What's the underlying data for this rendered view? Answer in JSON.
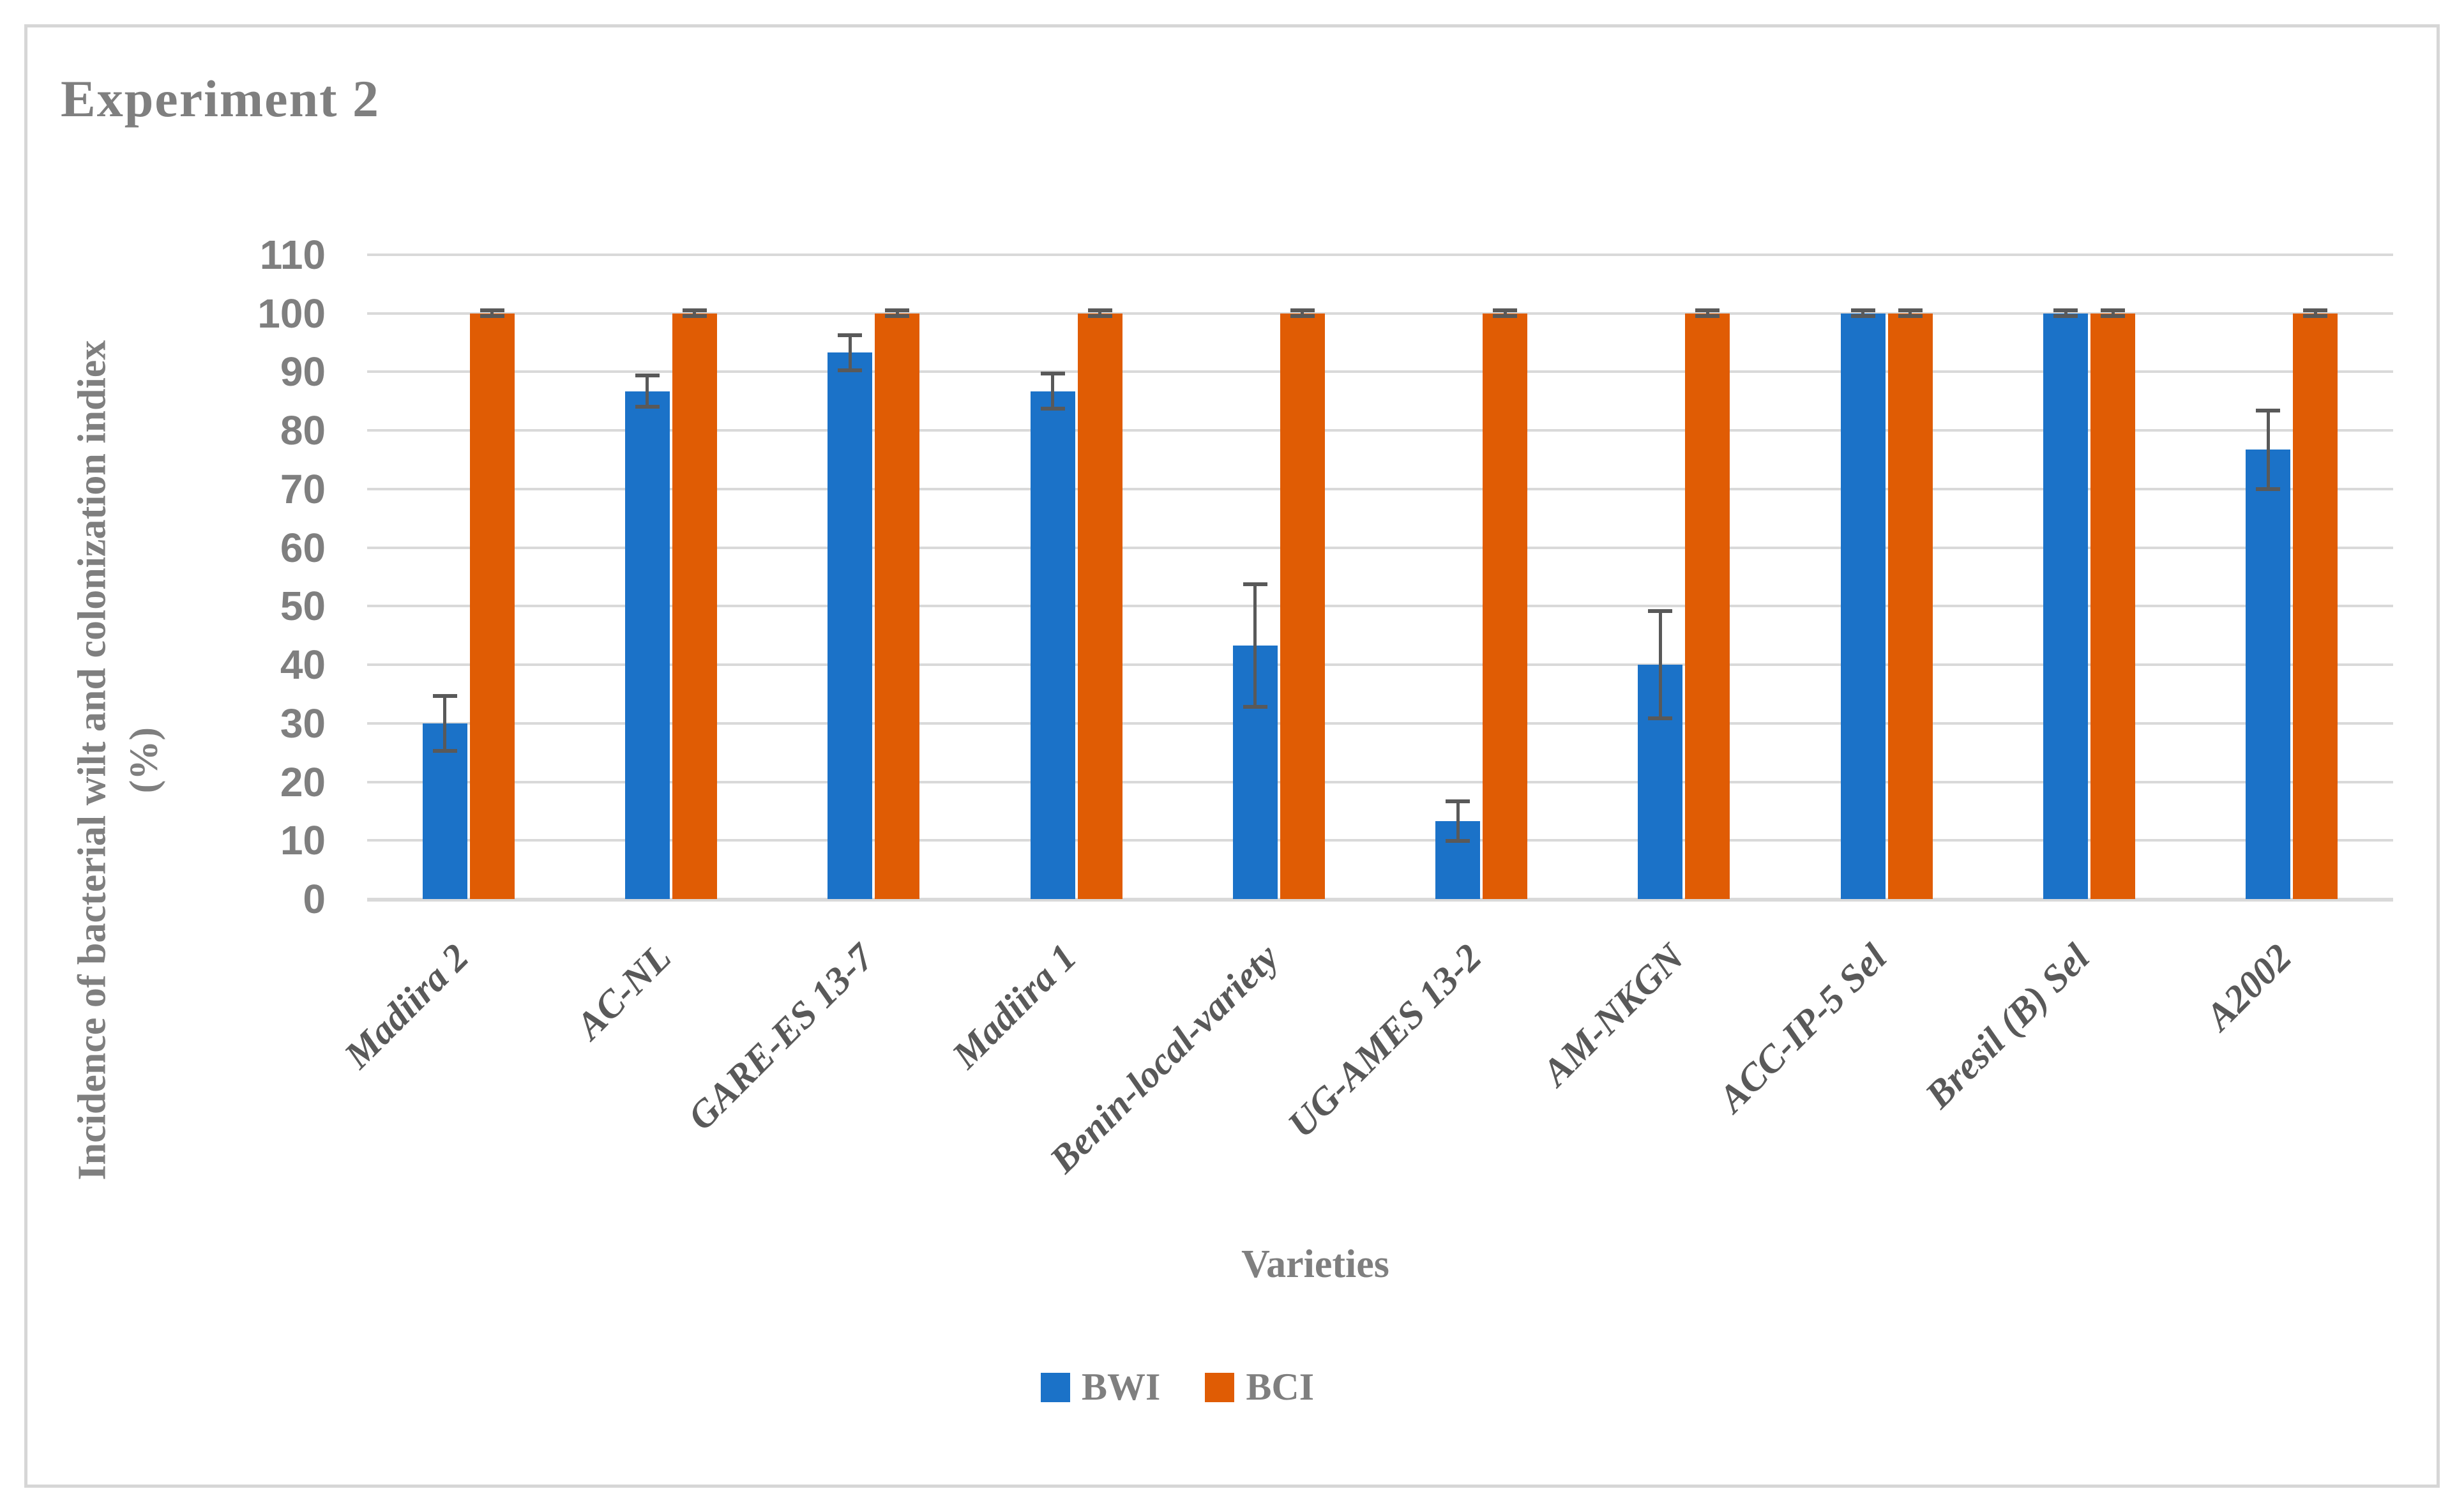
{
  "figure": {
    "title": "Experiment 2",
    "background": "#FFFFFF",
    "border_color": "#D6D6D6"
  },
  "chart_data": {
    "type": "bar",
    "title": "Experiment 2",
    "xlabel": "Varieties",
    "ylabel_line1": "Incidence of bacterial wilt and colonization indiex",
    "ylabel_line2": "(%)",
    "ylim": [
      0,
      110
    ],
    "yticks": [
      0,
      10,
      20,
      30,
      40,
      50,
      60,
      70,
      80,
      90,
      100,
      110
    ],
    "grid": "horizontal",
    "gridline_color": "#D9D9D9",
    "error_bar_color": "#595959",
    "legend_position": "bottom",
    "categories": [
      "Madiira 2",
      "AC-NL",
      "GARE-ES 13-7",
      "Madiira 1",
      "Benin-local-variety",
      "UG-AMES 13-2",
      "AM-NKGN",
      "ACC-IP-5 Sel",
      "Bresil (B) Sel",
      "A2002"
    ],
    "series": [
      {
        "name": "BWI",
        "color": "#1B72C8",
        "values": [
          30,
          86.7,
          93.3,
          86.7,
          43.3,
          13.3,
          40,
          100,
          100,
          76.7
        ],
        "errors": [
          4.7,
          2.7,
          3.0,
          3.0,
          10.5,
          3.4,
          9.2,
          0.5,
          0.5,
          6.7
        ]
      },
      {
        "name": "BCI",
        "color": "#E05C04",
        "values": [
          100,
          100,
          100,
          100,
          100,
          100,
          100,
          100,
          100,
          100
        ],
        "errors": [
          0.5,
          0.5,
          0.5,
          0.5,
          0.5,
          0.5,
          0.5,
          0.5,
          0.5,
          0.5
        ]
      }
    ],
    "text_colors": {
      "title": "#7F7F7F",
      "tick_labels": "#7F7F7F",
      "category_labels": "#595959",
      "axis_titles": "#7F7F7F",
      "legend": "#7F7F7F"
    }
  }
}
